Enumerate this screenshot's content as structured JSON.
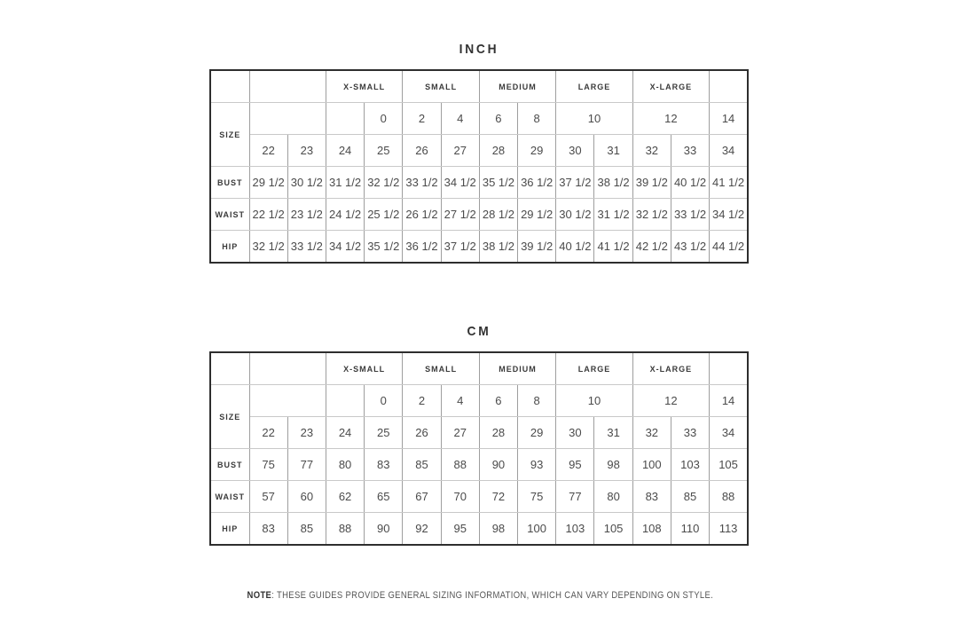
{
  "colors": {
    "outer_border": "#2e2e2e",
    "grid_vertical": "#9e9e9e",
    "grid_horizontal": "#c9c9c9",
    "text": "#4b4b4b",
    "label_text": "#3a3a3a"
  },
  "tables": [
    {
      "id": "inch",
      "title": "INCH",
      "corner_label": "SIZE",
      "groups": [
        "X-SMALL",
        "SMALL",
        "MEDIUM",
        "LARGE",
        "X-LARGE"
      ],
      "us_sizes": [
        "0",
        "2",
        "4",
        "6",
        "8",
        "10",
        "12",
        "14"
      ],
      "sizes": [
        "22",
        "23",
        "24",
        "25",
        "26",
        "27",
        "28",
        "29",
        "30",
        "31",
        "32",
        "33",
        "34"
      ],
      "rows": [
        {
          "label": "BUST",
          "values": [
            "29 1/2",
            "30 1/2",
            "31 1/2",
            "32 1/2",
            "33 1/2",
            "34 1/2",
            "35 1/2",
            "36 1/2",
            "37 1/2",
            "38 1/2",
            "39 1/2",
            "40 1/2",
            "41 1/2"
          ]
        },
        {
          "label": "WAIST",
          "values": [
            "22 1/2",
            "23 1/2",
            "24 1/2",
            "25 1/2",
            "26 1/2",
            "27 1/2",
            "28 1/2",
            "29 1/2",
            "30 1/2",
            "31 1/2",
            "32 1/2",
            "33 1/2",
            "34 1/2"
          ]
        },
        {
          "label": "HIP",
          "values": [
            "32 1/2",
            "33 1/2",
            "34 1/2",
            "35 1/2",
            "36 1/2",
            "37 1/2",
            "38 1/2",
            "39 1/2",
            "40 1/2",
            "41 1/2",
            "42 1/2",
            "43 1/2",
            "44 1/2"
          ]
        }
      ]
    },
    {
      "id": "cm",
      "title": "CM",
      "corner_label": "SIZE",
      "groups": [
        "X-SMALL",
        "SMALL",
        "MEDIUM",
        "LARGE",
        "X-LARGE"
      ],
      "us_sizes": [
        "0",
        "2",
        "4",
        "6",
        "8",
        "10",
        "12",
        "14"
      ],
      "sizes": [
        "22",
        "23",
        "24",
        "25",
        "26",
        "27",
        "28",
        "29",
        "30",
        "31",
        "32",
        "33",
        "34"
      ],
      "rows": [
        {
          "label": "BUST",
          "values": [
            "75",
            "77",
            "80",
            "83",
            "85",
            "88",
            "90",
            "93",
            "95",
            "98",
            "100",
            "103",
            "105"
          ]
        },
        {
          "label": "WAIST",
          "values": [
            "57",
            "60",
            "62",
            "65",
            "67",
            "70",
            "72",
            "75",
            "77",
            "80",
            "83",
            "85",
            "88"
          ]
        },
        {
          "label": "HIP",
          "values": [
            "83",
            "85",
            "88",
            "90",
            "92",
            "95",
            "98",
            "100",
            "103",
            "105",
            "108",
            "110",
            "113"
          ]
        }
      ]
    }
  ],
  "note": {
    "label": "NOTE",
    "text": ": THESE GUIDES PROVIDE GENERAL SIZING INFORMATION, WHICH CAN VARY DEPENDING ON STYLE."
  }
}
